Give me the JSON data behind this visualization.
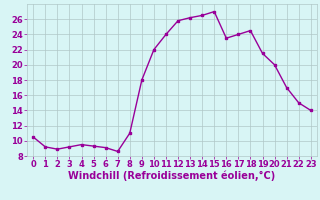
{
  "x": [
    0,
    1,
    2,
    3,
    4,
    5,
    6,
    7,
    8,
    9,
    10,
    11,
    12,
    13,
    14,
    15,
    16,
    17,
    18,
    19,
    20,
    21,
    22,
    23
  ],
  "y": [
    10.5,
    9.2,
    8.9,
    9.2,
    9.5,
    9.3,
    9.1,
    8.6,
    11.0,
    18.0,
    22.0,
    24.0,
    25.8,
    26.2,
    26.5,
    27.0,
    23.5,
    24.0,
    24.5,
    21.5,
    20.0,
    17.0,
    15.0,
    14.0
  ],
  "line_color": "#990099",
  "marker": "s",
  "marker_size": 2,
  "bg_color": "#d8f5f5",
  "grid_color": "#b0c8c8",
  "xlabel": "Windchill (Refroidissement éolien,°C)",
  "ylim": [
    8,
    28
  ],
  "xlim": [
    -0.5,
    23.5
  ],
  "yticks": [
    8,
    10,
    12,
    14,
    16,
    18,
    20,
    22,
    24,
    26
  ],
  "xticks": [
    0,
    1,
    2,
    3,
    4,
    5,
    6,
    7,
    8,
    9,
    10,
    11,
    12,
    13,
    14,
    15,
    16,
    17,
    18,
    19,
    20,
    21,
    22,
    23
  ],
  "tick_label_fontsize": 6,
  "xlabel_fontsize": 7,
  "line_width": 1.0
}
